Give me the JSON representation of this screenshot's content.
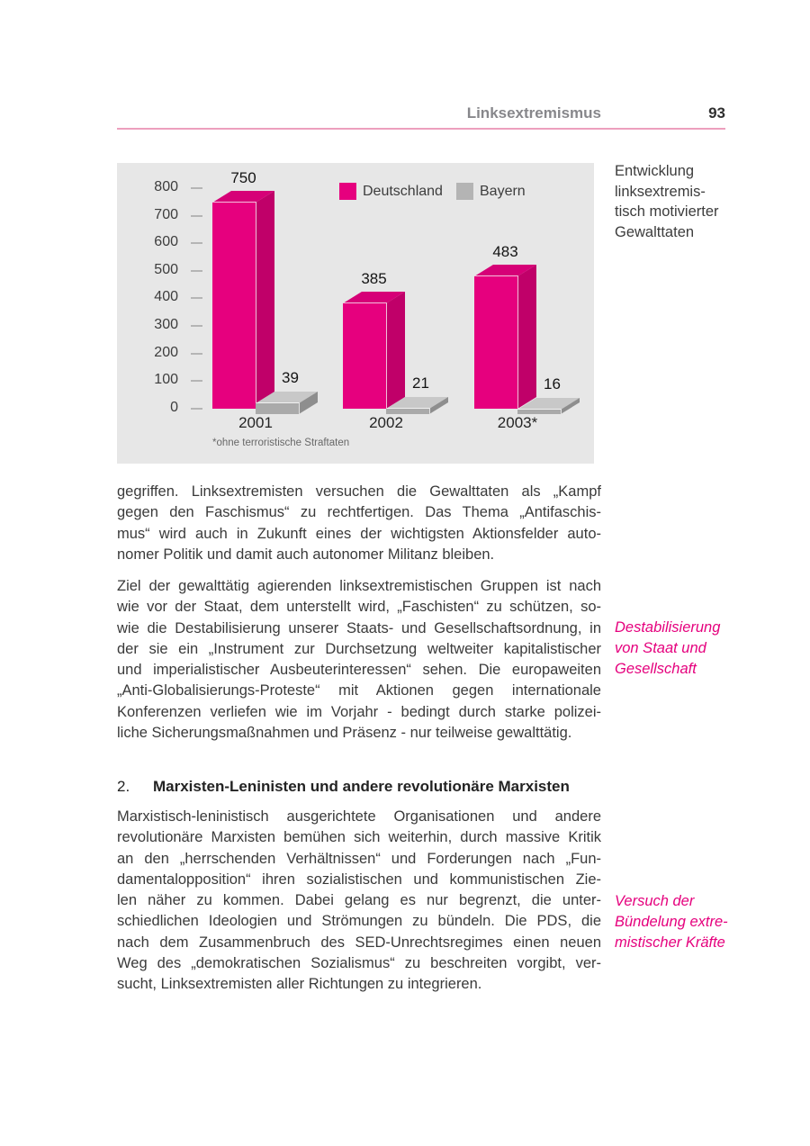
{
  "header": {
    "section_title": "Linksextremismus",
    "page_number": "93"
  },
  "chart_caption_lines": [
    "Entwicklung",
    "linksextremis-",
    "tisch motivierter",
    "Gewalttaten"
  ],
  "chart_data": {
    "type": "bar",
    "style": "3d-bars",
    "title": "Entwicklung linksextremistisch motivierter Gewalttaten",
    "categories": [
      "2001",
      "2002",
      "2003*"
    ],
    "series": [
      {
        "name": "Deutschland",
        "values": [
          750,
          385,
          483
        ],
        "color": "#e6007e",
        "side_color": "#c00069",
        "top_color": "#d60077"
      },
      {
        "name": "Bayern",
        "values": [
          39,
          21,
          16
        ],
        "color": "#aaaaaa",
        "side_color": "#8e8e8e",
        "top_color": "#c8c8c8"
      }
    ],
    "ylim": [
      0,
      800
    ],
    "yticks": [
      0,
      100,
      200,
      300,
      400,
      500,
      600,
      700,
      800
    ],
    "xlabel": "",
    "ylabel": "",
    "grid": false,
    "legend_position": "top",
    "background": "#e7e7e7",
    "footnote": "*ohne terroristische Straftaten"
  },
  "body": {
    "paragraphs": [
      {
        "lines": [
          "gegriffen. Linksextremisten versuchen die Gewalttaten als „Kampf",
          "gegen den Faschismus“ zu rechtfertigen. Das Thema „Antifaschis-",
          "mus“ wird auch in Zukunft eines der wichtigsten Aktionsfelder auto-",
          "nomer Politik und damit auch autonomer Militanz bleiben."
        ]
      },
      {
        "lines": [
          "Ziel der gewalttätig agierenden linksextremistischen Gruppen ist nach",
          "wie vor der Staat, dem unterstellt wird, „Faschisten“ zu schützen, so-",
          "wie die Destabilisierung unserer Staats- und Gesellschaftsordnung, in",
          "der sie ein „Instrument zur Durchsetzung weltweiter kapitalistischer",
          "und imperialistischer Ausbeuterinteressen“ sehen. Die europaweiten",
          "„Anti-Globalisierungs-Proteste“ mit Aktionen gegen internationale",
          "Konferenzen verliefen wie im Vorjahr - bedingt durch starke polizei-",
          "liche Sicherungsmaßnahmen und Präsenz - nur teilweise gewalttätig."
        ]
      },
      {
        "lines": [
          "Marxistisch-leninistisch ausgerichtete Organisationen und andere",
          "revolutionäre Marxisten bemühen sich weiterhin, durch massive Kritik",
          "an den „herrschenden Verhältnissen“ und Forderungen nach „Fun-",
          "damentalopposition“ ihren sozialistischen und kommunistischen Zie-",
          "len näher zu kommen. Dabei gelang es nur begrenzt, die unter-",
          "schiedlichen Ideologien und Strömungen zu bündeln. Die PDS, die",
          "nach dem Zusammenbruch des SED-Unrechtsregimes einen neuen",
          "Weg des „demokratischen Sozialismus“ zu beschreiten vorgibt, ver-",
          "sucht, Linksextremisten aller Richtungen zu integrieren."
        ]
      }
    ],
    "heading": {
      "number": "2.",
      "text": "Marxisten-Leninisten und andere revolutionäre Marxisten"
    }
  },
  "margin_notes": [
    {
      "lines": [
        "Destabilisierung",
        "von Staat und",
        "Gesellschaft"
      ]
    },
    {
      "lines": [
        "Versuch der",
        "Bündelung extre-",
        "mistischer Kräfte"
      ]
    }
  ],
  "colors": {
    "accent_pink": "#e5007d",
    "header_rule_pink": "#ed9fbe",
    "chart_background": "#e7e7e7",
    "deutschland_bar": "#e6007e",
    "bayern_bar": "#aaaaaa"
  }
}
